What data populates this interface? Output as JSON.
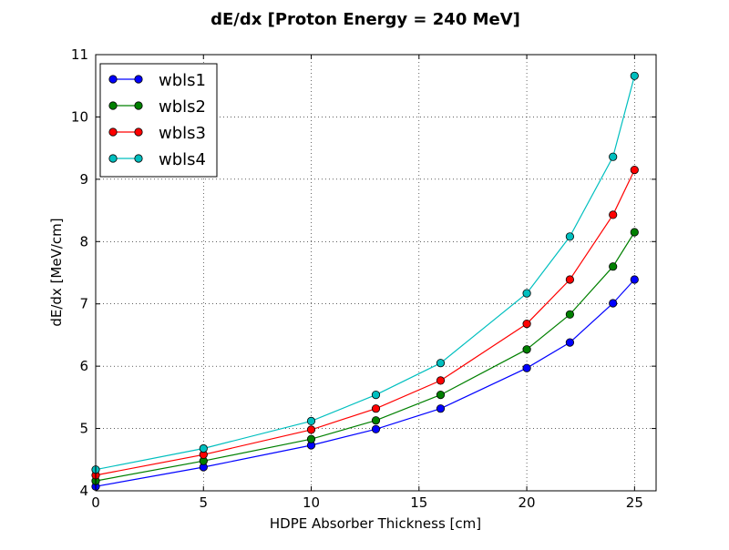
{
  "chart_data": {
    "type": "line",
    "title": "dE/dx [Proton Energy = 240 MeV]",
    "xlabel": "HDPE Absorber Thickness [cm]",
    "ylabel": "dE/dx [MeV/cm]",
    "xlim": [
      0,
      26
    ],
    "ylim": [
      4,
      11
    ],
    "x_ticks": [
      0,
      5,
      10,
      15,
      20,
      25
    ],
    "y_ticks": [
      4,
      5,
      6,
      7,
      8,
      9,
      10,
      11
    ],
    "grid": true,
    "legend_position": "top-left",
    "x": [
      0,
      5,
      10,
      13,
      16,
      20,
      22,
      24,
      25
    ],
    "series": [
      {
        "name": "wbls1",
        "color": "#0000ff",
        "values": [
          4.07,
          4.38,
          4.73,
          4.99,
          5.32,
          5.97,
          6.38,
          7.01,
          7.39
        ]
      },
      {
        "name": "wbls2",
        "color": "#008000",
        "values": [
          4.16,
          4.48,
          4.83,
          5.13,
          5.54,
          6.27,
          6.83,
          7.6,
          8.15
        ]
      },
      {
        "name": "wbls3",
        "color": "#ff0000",
        "values": [
          4.25,
          4.58,
          4.98,
          5.32,
          5.77,
          6.68,
          7.39,
          8.43,
          9.15
        ]
      },
      {
        "name": "wbls4",
        "color": "#00bfbf",
        "values": [
          4.34,
          4.68,
          5.12,
          5.54,
          6.05,
          7.17,
          8.08,
          9.36,
          10.66
        ]
      }
    ]
  }
}
